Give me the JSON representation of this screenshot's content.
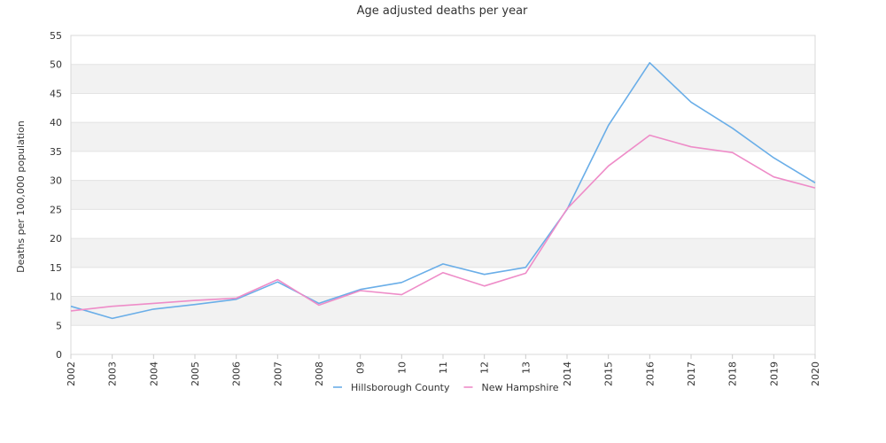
{
  "chart_data": {
    "type": "line",
    "title": "Age adjusted deaths per year",
    "xlabel": "",
    "ylabel": "Deaths per 100,000 population",
    "x": [
      "2002",
      "2003",
      "2004",
      "2005",
      "2006",
      "2007",
      "2008",
      "09",
      "10",
      "11",
      "12",
      "13",
      "2014",
      "2015",
      "2016",
      "2017",
      "2018",
      "2019",
      "2020"
    ],
    "ylim": [
      0,
      55
    ],
    "yticks": [
      "0",
      "5",
      "10",
      "15",
      "20",
      "25",
      "30",
      "35",
      "40",
      "45",
      "50",
      "55"
    ],
    "series": [
      {
        "name": "Hillsborough County",
        "color": "#6aaee8",
        "values": [
          8.3,
          6.2,
          7.8,
          8.6,
          9.5,
          12.5,
          8.8,
          11.2,
          12.4,
          15.6,
          13.8,
          15.0,
          25.0,
          39.5,
          50.3,
          43.5,
          39.0,
          33.9,
          29.6
        ]
      },
      {
        "name": "New Hampshire",
        "color": "#ee8cc8",
        "values": [
          7.5,
          8.3,
          8.8,
          9.3,
          9.7,
          12.9,
          8.5,
          11.0,
          10.3,
          14.1,
          11.8,
          14.0,
          25.1,
          32.5,
          37.8,
          35.8,
          34.8,
          30.6,
          28.7
        ]
      }
    ],
    "grid": true,
    "banded_background": true,
    "band_color": "#f2f2f2",
    "legend_position": "bottom-center"
  }
}
